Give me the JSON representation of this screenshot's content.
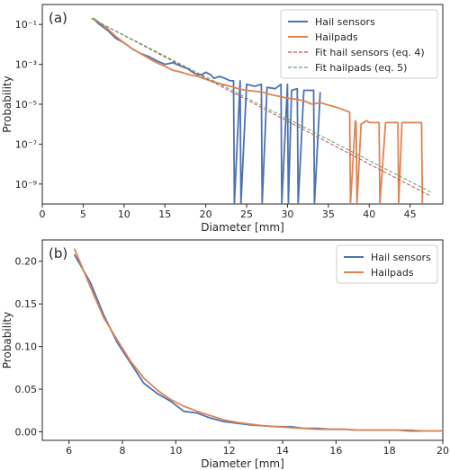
{
  "chart_data": [
    {
      "type": "line",
      "panel_label": "(a)",
      "xlabel": "Diameter [mm]",
      "ylabel": "Probability",
      "yscale": "log",
      "xlim": [
        0,
        49
      ],
      "ylim": [
        1e-10,
        1
      ],
      "x_ticks": [
        0,
        5,
        10,
        15,
        20,
        25,
        30,
        35,
        40,
        45
      ],
      "y_tick_labels": [
        "10⁻¹",
        "10⁻³",
        "10⁻⁵",
        "10⁻⁷",
        "10⁻⁹"
      ],
      "y_tick_values": [
        0.1,
        0.001,
        1e-05,
        1e-07,
        1e-09
      ],
      "legend_placement": "top-right",
      "series": [
        {
          "name": "Hail sensors",
          "color": "#4c72b0",
          "style": "solid",
          "x": [
            6.2,
            7,
            8,
            9,
            10,
            11,
            12,
            13,
            14,
            15,
            16,
            17,
            17.8,
            18.4,
            19,
            19.5,
            20,
            20.6,
            21,
            21.7,
            22.3,
            23,
            23.4,
            23.5,
            24.2,
            24.3,
            25,
            26,
            26.8,
            26.9,
            27.5,
            28.5,
            29.2,
            29.3,
            30,
            30.1,
            30.5,
            31.2,
            31.3,
            32,
            33.2,
            33.3,
            34
          ],
          "y": [
            0.2,
            0.1,
            0.05,
            0.02,
            0.012,
            0.006,
            0.0035,
            0.0025,
            0.0015,
            0.001,
            0.0012,
            0.0008,
            0.0006,
            0.0004,
            0.0003,
            0.0003,
            0.0004,
            0.0003,
            0.0002,
            0.00025,
            0.0002,
            0.00015,
            0.00015,
            1e-10,
            0.00015,
            1e-10,
            0.0001,
            8e-05,
            0.0001,
            1e-10,
            7e-05,
            6e-05,
            0.0001,
            1e-10,
            0.0001,
            1e-10,
            5e-05,
            6e-05,
            1e-10,
            5e-05,
            5e-05,
            1e-10,
            4e-05
          ]
        },
        {
          "name": "Hailpads",
          "color": "#dd8452",
          "style": "solid",
          "x": [
            6.2,
            7,
            8,
            9,
            10,
            11,
            12,
            13,
            14,
            15,
            16,
            17,
            18,
            19,
            20,
            21,
            22,
            23,
            24,
            25,
            26,
            27,
            28,
            29,
            30,
            31,
            32,
            33,
            34,
            35,
            36,
            37,
            37.6,
            37.7,
            38.3,
            38.4,
            38.5,
            39,
            39.7,
            40,
            41,
            41.2,
            41.3,
            42,
            43,
            43.5,
            43.6,
            44,
            45,
            46,
            46.4,
            46.5
          ],
          "y": [
            0.21,
            0.12,
            0.06,
            0.025,
            0.012,
            0.006,
            0.0035,
            0.002,
            0.0012,
            0.0008,
            0.0005,
            0.0004,
            0.0003,
            0.00025,
            0.00018,
            0.00013,
            0.0001,
            8e-05,
            6e-05,
            5e-05,
            4.5e-05,
            4e-05,
            3e-05,
            2.5e-05,
            2e-05,
            1.8e-05,
            1.5e-05,
            1e-05,
            1.2e-05,
            9e-06,
            7e-06,
            5e-06,
            4e-06,
            1e-10,
            1.5e-06,
            1.2e-06,
            1e-10,
            1e-06,
            1.5e-06,
            1.2e-06,
            1.2e-06,
            1.2e-06,
            1e-10,
            1.2e-06,
            1.2e-06,
            1.2e-06,
            1e-10,
            1.2e-06,
            1.2e-06,
            1.2e-06,
            1.2e-06,
            1e-10
          ]
        },
        {
          "name": "Fit hail sensors (eq. 4)",
          "color": "#c44e52",
          "style": "dashed",
          "x": [
            6,
            47.5
          ],
          "y": [
            0.2,
            2.5e-10
          ]
        },
        {
          "name": "Fit hailpads (eq. 5)",
          "color": "#55a868",
          "style": "dashed",
          "x": [
            6,
            47.5
          ],
          "y": [
            0.2,
            4e-10
          ]
        }
      ]
    },
    {
      "type": "line",
      "panel_label": "(b)",
      "xlabel": "Diameter [mm]",
      "ylabel": "Probability",
      "xlim": [
        5,
        20
      ],
      "ylim": [
        -0.01,
        0.225
      ],
      "x_ticks": [
        6,
        8,
        10,
        12,
        14,
        16,
        18,
        20
      ],
      "y_ticks": [
        0.0,
        0.05,
        0.1,
        0.15,
        0.2
      ],
      "y_tick_labels": [
        "0.00",
        "0.05",
        "0.10",
        "0.15",
        "0.20"
      ],
      "legend_placement": "top-right",
      "series": [
        {
          "name": "Hail sensors",
          "color": "#4c72b0",
          "x": [
            6.2,
            6.8,
            7.3,
            7.8,
            8.3,
            8.8,
            9.3,
            9.8,
            10.3,
            10.8,
            11.3,
            11.8,
            12.3,
            12.8,
            13.3,
            13.8,
            14.3,
            14.8,
            15.3,
            15.8,
            16.3,
            16.8,
            17.3,
            17.8,
            18.3,
            18.8,
            19.3,
            20
          ],
          "y": [
            0.208,
            0.175,
            0.137,
            0.105,
            0.081,
            0.057,
            0.045,
            0.036,
            0.024,
            0.022,
            0.016,
            0.012,
            0.01,
            0.008,
            0.007,
            0.006,
            0.006,
            0.004,
            0.004,
            0.003,
            0.003,
            0.002,
            0.002,
            0.002,
            0.002,
            0.001,
            0.001,
            0.001
          ]
        },
        {
          "name": "Hailpads",
          "color": "#dd8452",
          "x": [
            6.2,
            6.8,
            7.3,
            7.8,
            8.3,
            8.8,
            9.3,
            9.8,
            10.3,
            10.8,
            11.3,
            11.8,
            12.3,
            12.8,
            13.3,
            13.8,
            14.3,
            14.8,
            15.3,
            15.8,
            16.3,
            16.8,
            17.3,
            17.8,
            18.3,
            18.8,
            19.3,
            20
          ],
          "y": [
            0.215,
            0.17,
            0.134,
            0.108,
            0.083,
            0.063,
            0.049,
            0.038,
            0.03,
            0.024,
            0.019,
            0.014,
            0.011,
            0.009,
            0.007,
            0.006,
            0.005,
            0.004,
            0.003,
            0.003,
            0.003,
            0.002,
            0.002,
            0.002,
            0.002,
            0.002,
            0.001,
            0.001
          ]
        }
      ]
    }
  ]
}
